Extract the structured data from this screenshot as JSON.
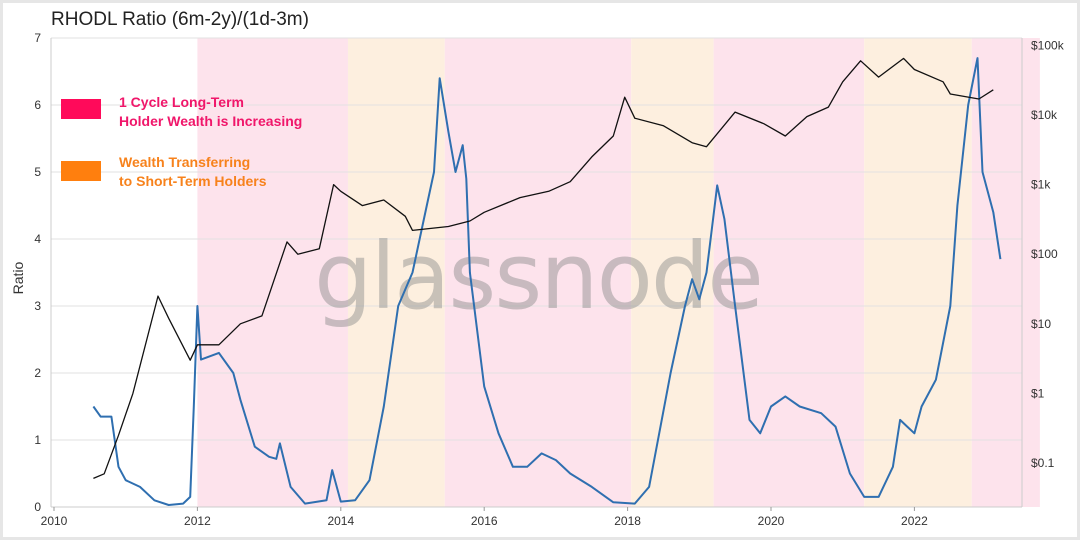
{
  "chart_data": {
    "type": "line",
    "title": "RHODL Ratio (6m-2y)/(1d-3m)",
    "ylabel": "Ratio",
    "xlim": [
      2009.9,
      2023.75
    ],
    "ylim": [
      0,
      7
    ],
    "y2_scale": "log",
    "y2lim": [
      0.02,
      100000
    ],
    "grid": true,
    "x_ticks": [
      "2010",
      "2012",
      "2014",
      "2016",
      "2018",
      "2020",
      "2022"
    ],
    "y_ticks": [
      "0",
      "1",
      "2",
      "3",
      "4",
      "5",
      "6",
      "7"
    ],
    "y2_ticks": [
      "$0.1",
      "$1",
      "$10",
      "$100",
      "$1k",
      "$10k",
      "$100k"
    ],
    "watermark": "glassnode",
    "legend": [
      {
        "label_lines": [
          "1 Cycle Long-Term",
          "Holder Wealth is Increasing"
        ],
        "color": "#ff0a5a",
        "text_color": "#f0166a"
      },
      {
        "label_lines": [
          "Wealth Transferring",
          "to Short-Term Holders"
        ],
        "color": "#ff7f0e",
        "text_color": "#f7821c"
      }
    ],
    "bands": [
      {
        "type": "pink",
        "from": 2012.0,
        "to": 2014.1
      },
      {
        "type": "orange",
        "from": 2014.1,
        "to": 2015.45
      },
      {
        "type": "pink",
        "from": 2015.45,
        "to": 2018.05
      },
      {
        "type": "orange",
        "from": 2018.05,
        "to": 2019.2
      },
      {
        "type": "pink",
        "from": 2019.2,
        "to": 2021.3
      },
      {
        "type": "orange",
        "from": 2021.3,
        "to": 2022.8
      },
      {
        "type": "pink",
        "from": 2022.8,
        "to": 2023.75
      }
    ],
    "band_colors": {
      "pink": "#fde3ec",
      "orange": "#fdefdf"
    },
    "series": [
      {
        "axis": "left",
        "color": "#2f6fb0",
        "x": [
          2010.55,
          2010.65,
          2010.8,
          2010.9,
          2011.0,
          2011.2,
          2011.4,
          2011.6,
          2011.8,
          2011.9,
          2011.95,
          2012.0,
          2012.05,
          2012.3,
          2012.5,
          2012.6,
          2012.8,
          2013.0,
          2013.1,
          2013.15,
          2013.3,
          2013.5,
          2013.8,
          2013.88,
          2014.0,
          2014.2,
          2014.4,
          2014.6,
          2014.8,
          2015.0,
          2015.2,
          2015.3,
          2015.38,
          2015.5,
          2015.6,
          2015.7,
          2015.75,
          2015.8,
          2016.0,
          2016.2,
          2016.4,
          2016.6,
          2016.8,
          2017.0,
          2017.2,
          2017.5,
          2017.8,
          2018.1,
          2018.3,
          2018.6,
          2018.8,
          2018.9,
          2019.0,
          2019.1,
          2019.25,
          2019.35,
          2019.5,
          2019.7,
          2019.85,
          2020.0,
          2020.2,
          2020.4,
          2020.7,
          2020.9,
          2021.1,
          2021.3,
          2021.5,
          2021.7,
          2021.8,
          2021.9,
          2022.0,
          2022.1,
          2022.3,
          2022.5,
          2022.6,
          2022.75,
          2022.88,
          2022.95,
          2023.1,
          2023.2
        ],
        "y": [
          1.5,
          1.35,
          1.35,
          0.6,
          0.4,
          0.3,
          0.1,
          0.03,
          0.05,
          0.15,
          1.5,
          3.0,
          2.2,
          2.3,
          2.0,
          1.6,
          0.9,
          0.75,
          0.72,
          0.95,
          0.3,
          0.05,
          0.1,
          0.55,
          0.08,
          0.1,
          0.4,
          1.5,
          3.0,
          3.5,
          4.5,
          5.0,
          6.4,
          5.6,
          5.0,
          5.4,
          4.9,
          3.5,
          1.8,
          1.1,
          0.6,
          0.6,
          0.8,
          0.7,
          0.5,
          0.3,
          0.07,
          0.05,
          0.3,
          2.0,
          3.0,
          3.4,
          3.1,
          3.5,
          4.8,
          4.3,
          3.0,
          1.3,
          1.1,
          1.5,
          1.65,
          1.5,
          1.4,
          1.2,
          0.5,
          0.15,
          0.15,
          0.6,
          1.3,
          1.2,
          1.1,
          1.5,
          1.9,
          3.0,
          4.5,
          6.0,
          6.7,
          5.0,
          4.4,
          3.7
        ]
      },
      {
        "axis": "right",
        "color": "#111111",
        "x": [
          2010.55,
          2010.7,
          2010.9,
          2011.1,
          2011.45,
          2011.6,
          2011.9,
          2012.0,
          2012.3,
          2012.6,
          2012.9,
          2013.25,
          2013.4,
          2013.7,
          2013.9,
          2014.0,
          2014.3,
          2014.6,
          2014.9,
          2015.0,
          2015.5,
          2015.8,
          2016.0,
          2016.5,
          2016.9,
          2017.2,
          2017.5,
          2017.8,
          2017.96,
          2018.1,
          2018.5,
          2018.9,
          2019.1,
          2019.5,
          2019.9,
          2020.2,
          2020.5,
          2020.8,
          2021.0,
          2021.25,
          2021.5,
          2021.85,
          2022.0,
          2022.4,
          2022.5,
          2022.9,
          2023.1
        ],
        "y": [
          0.06,
          0.07,
          0.25,
          1,
          25,
          12,
          3,
          5,
          5,
          10,
          13,
          150,
          100,
          120,
          1000,
          800,
          500,
          600,
          350,
          220,
          250,
          300,
          400,
          650,
          800,
          1100,
          2500,
          5000,
          18000,
          9000,
          7000,
          4000,
          3500,
          11000,
          7500,
          5000,
          9500,
          13000,
          30000,
          60000,
          35000,
          65000,
          45000,
          30000,
          20000,
          17000,
          23000
        ]
      }
    ]
  }
}
